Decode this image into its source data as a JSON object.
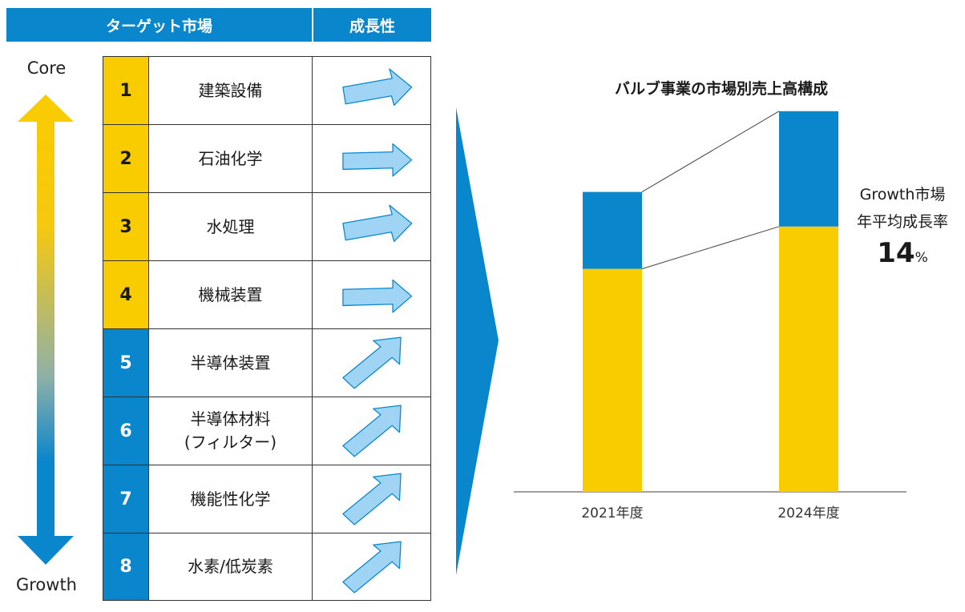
{
  "header": {
    "market_label": "ターゲット市場",
    "growth_label": "成長性"
  },
  "axis": {
    "top_label": "Core",
    "bottom_label": "Growth"
  },
  "markets": [
    {
      "number": "1",
      "name_lines": [
        "建築設備"
      ],
      "group": "core",
      "trend": "up-right-gentle"
    },
    {
      "number": "2",
      "name_lines": [
        "石油化学"
      ],
      "group": "core",
      "trend": "flat"
    },
    {
      "number": "3",
      "name_lines": [
        "水処理"
      ],
      "group": "core",
      "trend": "up-right-gentle"
    },
    {
      "number": "4",
      "name_lines": [
        "機械装置"
      ],
      "group": "core",
      "trend": "flat"
    },
    {
      "number": "5",
      "name_lines": [
        "半導体装置"
      ],
      "group": "growth",
      "trend": "up-right-steep"
    },
    {
      "number": "6",
      "name_lines": [
        "半導体材料",
        "(フィルター)"
      ],
      "group": "growth",
      "trend": "up-right-steep"
    },
    {
      "number": "7",
      "name_lines": [
        "機能性化学"
      ],
      "group": "growth",
      "trend": "up-right-steep"
    },
    {
      "number": "8",
      "name_lines": [
        "水素/低炭素"
      ],
      "group": "growth",
      "trend": "up-right-steep"
    }
  ],
  "colors": {
    "core": "#f9cc00",
    "growth": "#0a86cc",
    "arrow_fill": "#9fd4f5",
    "arrow_stroke": "#0a86cc"
  },
  "chart_data": {
    "type": "bar",
    "stacked": true,
    "title": "バルブ事業の市場別売上高構成",
    "categories": [
      "2021年度",
      "2024年度"
    ],
    "series": [
      {
        "key": "core",
        "color": "#f9cc00",
        "values": [
          58,
          69
        ]
      },
      {
        "key": "growth",
        "color": "#0a86cc",
        "values": [
          20,
          30
        ]
      }
    ],
    "ylim": [
      0,
      100
    ],
    "grid": false,
    "annotation": {
      "line1": "Growth市場",
      "line2": "年平均成長率",
      "value": "14",
      "unit": "%"
    }
  }
}
